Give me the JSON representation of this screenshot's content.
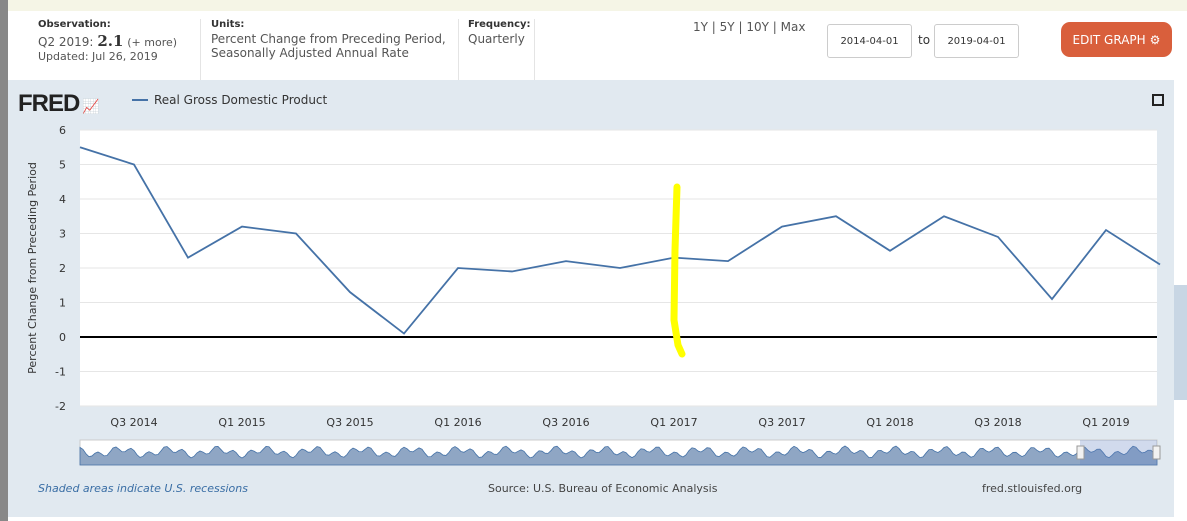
{
  "observation": {
    "label": "Observation:",
    "period": "Q2 2019:",
    "value": "2.1",
    "more": "(+ more)",
    "updated": "Updated: Jul 26, 2019"
  },
  "units": {
    "label": "Units:",
    "line1": "Percent Change from Preceding Period,",
    "line2": "Seasonally Adjusted Annual Rate"
  },
  "frequency": {
    "label": "Frequency:",
    "value": "Quarterly"
  },
  "range": {
    "1y": "1Y",
    "5y": "5Y",
    "10y": "10Y",
    "max": "Max",
    "sep": "|",
    "from": "2014-04-01",
    "to_label": "to",
    "to": "2019-04-01"
  },
  "edit_graph": "EDIT GRAPH",
  "logo": "FRED",
  "footer": {
    "recessions": "Shaded areas indicate U.S. recessions",
    "source": "Source: U.S. Bureau of Economic Analysis",
    "site": "fred.stlouisfed.org"
  },
  "colors": {
    "line": "#4572a7",
    "edit": "#d95f3c",
    "highlight": "#ffff00"
  },
  "chart_data": {
    "type": "line",
    "legend": [
      "Real Gross Domestic Product"
    ],
    "ylabel": "Percent Change from Preceding Period",
    "ylim": [
      -2,
      6
    ],
    "yticks": [
      "-2",
      "-1",
      "0",
      "1",
      "2",
      "3",
      "4",
      "5",
      "6"
    ],
    "xticks": [
      "Q3 2014",
      "Q1 2015",
      "Q3 2015",
      "Q1 2016",
      "Q3 2016",
      "Q1 2017",
      "Q3 2017",
      "Q1 2018",
      "Q3 2018",
      "Q1 2019"
    ],
    "xtick_index": [
      1,
      3,
      5,
      7,
      9,
      11,
      13,
      15,
      17,
      19
    ],
    "x": [
      "2014Q2",
      "2014Q3",
      "2014Q4",
      "2015Q1",
      "2015Q2",
      "2015Q3",
      "2015Q4",
      "2016Q1",
      "2016Q2",
      "2016Q3",
      "2016Q4",
      "2017Q1",
      "2017Q2",
      "2017Q3",
      "2017Q4",
      "2018Q1",
      "2018Q2",
      "2018Q3",
      "2018Q4",
      "2019Q1",
      "2019Q2"
    ],
    "series": [
      {
        "name": "Real Gross Domestic Product",
        "values": [
          5.5,
          5.0,
          2.3,
          3.2,
          3.0,
          1.3,
          0.1,
          2.0,
          1.9,
          2.2,
          2.0,
          2.3,
          2.2,
          3.2,
          3.5,
          2.5,
          3.5,
          2.9,
          1.1,
          3.1,
          2.1
        ]
      }
    ]
  }
}
